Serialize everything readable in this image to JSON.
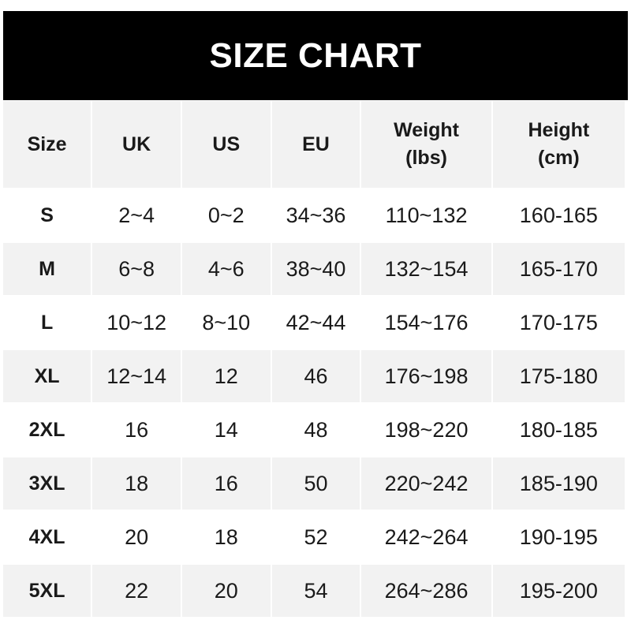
{
  "title": "SIZE CHART",
  "headers": [
    "Size",
    "UK",
    "US",
    "EU",
    "Weight\n(lbs)",
    "Height\n(cm)"
  ],
  "rows": [
    [
      "S",
      "2~4",
      "0~2",
      "34~36",
      "110~132",
      "160-165"
    ],
    [
      "M",
      "6~8",
      "4~6",
      "38~40",
      "132~154",
      "165-170"
    ],
    [
      "L",
      "10~12",
      "8~10",
      "42~44",
      "154~176",
      "170-175"
    ],
    [
      "XL",
      "12~14",
      "12",
      "46",
      "176~198",
      "175-180"
    ],
    [
      "2XL",
      "16",
      "14",
      "48",
      "198~220",
      "180-185"
    ],
    [
      "3XL",
      "18",
      "16",
      "50",
      "220~242",
      "185-190"
    ],
    [
      "4XL",
      "20",
      "18",
      "52",
      "242~264",
      "190-195"
    ],
    [
      "5XL",
      "22",
      "20",
      "54",
      "264~286",
      "195-200"
    ]
  ],
  "colors": {
    "banner": "#000000",
    "stripe": "#f2f2f2"
  }
}
